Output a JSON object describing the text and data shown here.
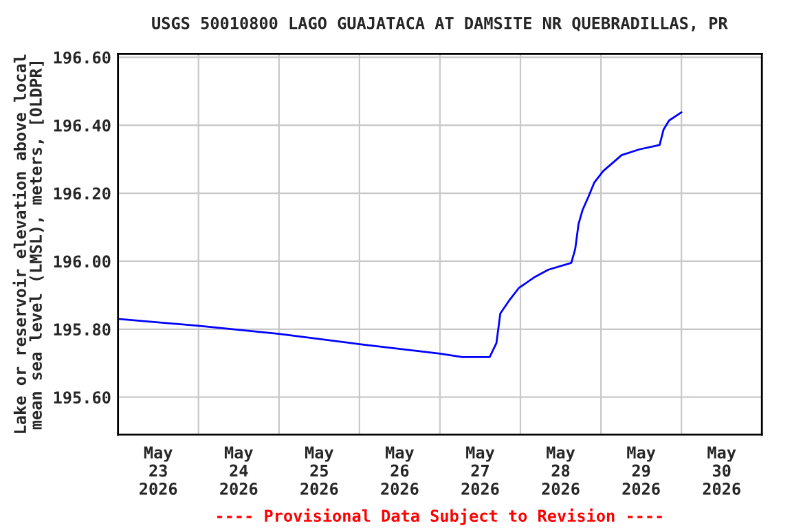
{
  "chart_data": {
    "type": "line",
    "title": "USGS 50010800 LAGO GUAJATACA AT DAMSITE NR QUEBRADILLAS, PR",
    "ylabel": "Lake or reservoir elevation above local\nmean sea level (LMSL), meters, [OLDPR]",
    "annotations": [
      "---- Provisional Data Subject to Revision ----"
    ],
    "x": [
      "2026-05-23T00:00",
      "2026-05-24T00:00",
      "2026-05-25T00:00",
      "2026-05-26T00:00",
      "2026-05-27T00:00",
      "2026-05-27T06:40",
      "2026-05-27T14:50",
      "2026-05-27T16:50",
      "2026-05-27T18:00",
      "2026-05-27T20:50",
      "2026-05-27T23:30",
      "2026-05-28T04:20",
      "2026-05-28T08:20",
      "2026-05-28T15:10",
      "2026-05-28T16:20",
      "2026-05-28T17:20",
      "2026-05-28T18:30",
      "2026-05-28T20:20",
      "2026-05-28T22:00",
      "2026-05-29T00:40",
      "2026-05-29T06:10",
      "2026-05-29T11:30",
      "2026-05-29T17:30",
      "2026-05-29T18:40",
      "2026-05-29T20:20",
      "2026-05-30T00:00"
    ],
    "series": [
      {
        "color": "#0000ff",
        "values": [
          195.83,
          195.81,
          195.786,
          195.756,
          195.728,
          195.718,
          195.718,
          195.759,
          195.846,
          195.887,
          195.921,
          195.954,
          195.975,
          195.995,
          196.036,
          196.11,
          196.15,
          196.191,
          196.231,
          196.265,
          196.312,
          196.329,
          196.342,
          196.387,
          196.414,
          196.438
        ]
      }
    ],
    "xlim": [
      "2026-05-23T00:00",
      "2026-05-31T00:00"
    ],
    "xticks": [
      {
        "value": "2026-05-23T12:00",
        "label": "May\n23\n2026"
      },
      {
        "value": "2026-05-24T12:00",
        "label": "May\n24\n2026"
      },
      {
        "value": "2026-05-25T12:00",
        "label": "May\n25\n2026"
      },
      {
        "value": "2026-05-26T12:00",
        "label": "May\n26\n2026"
      },
      {
        "value": "2026-05-27T12:00",
        "label": "May\n27\n2026"
      },
      {
        "value": "2026-05-28T12:00",
        "label": "May\n28\n2026"
      },
      {
        "value": "2026-05-29T12:00",
        "label": "May\n29\n2026"
      },
      {
        "value": "2026-05-30T12:00",
        "label": "May\n30\n2026"
      },
      {
        "value": "2026-05-24T00:00",
        "label": null
      },
      {
        "value": "2026-05-25T00:00",
        "label": null
      },
      {
        "value": "2026-05-26T00:00",
        "label": null
      },
      {
        "value": "2026-05-27T00:00",
        "label": null
      },
      {
        "value": "2026-05-28T00:00",
        "label": null
      },
      {
        "value": "2026-05-29T00:00",
        "label": null
      },
      {
        "value": "2026-05-30T00:00",
        "label": null
      }
    ],
    "ylim": [
      195.49,
      196.61
    ],
    "yticks": [
      {
        "value": 195.6,
        "label": "195.60"
      },
      {
        "value": 195.8,
        "label": "195.80"
      },
      {
        "value": 196.0,
        "label": "196.00"
      },
      {
        "value": 196.2,
        "label": "196.20"
      },
      {
        "value": 196.4,
        "label": "196.40"
      },
      {
        "value": 196.6,
        "label": "196.60"
      }
    ],
    "grid": true,
    "marker": "none",
    "line_style": "solid"
  }
}
